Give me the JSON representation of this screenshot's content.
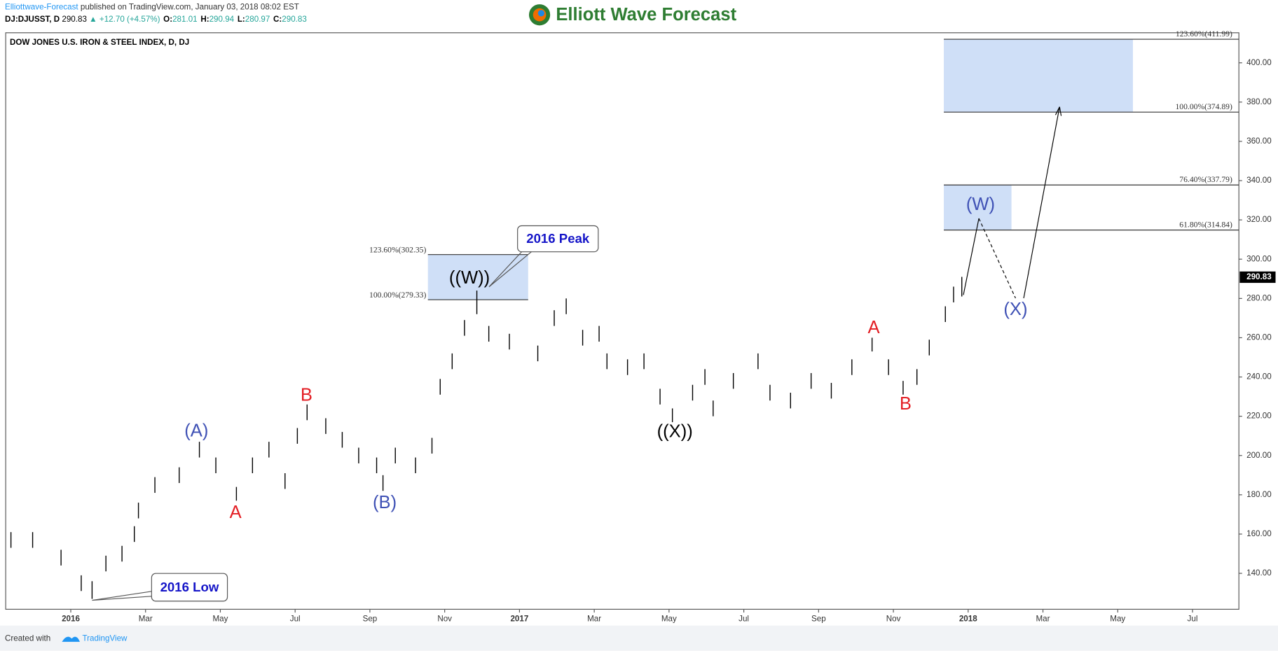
{
  "header": {
    "author": "Elliottwave-Forecast",
    "published": "published on TradingView.com, January 03, 2018 08:02 EST",
    "symbol": "DJ:DJUSST, D",
    "price": "290.83",
    "change": "▲ +12.70 (+4.57%)",
    "ohlc": [
      {
        "label": "O:",
        "value": "281.01"
      },
      {
        "label": "H:",
        "value": "290.94"
      },
      {
        "label": "L:",
        "value": "280.97"
      },
      {
        "label": "C:",
        "value": "290.83"
      }
    ],
    "logo": "Elliott Wave Forecast"
  },
  "footer": {
    "created": "Created with",
    "brand": "TradingView"
  },
  "chart_data": {
    "type": "ohlc",
    "title": "DOW JONES U.S. IRON & STEEL INDEX, D, DJ",
    "x": [
      -1.6,
      -1.02,
      -0.26,
      0.28,
      0.57,
      0.94,
      1.37,
      1.7,
      1.81,
      2.25,
      2.9,
      3.44,
      3.88,
      4.43,
      4.86,
      5.3,
      5.73,
      6.06,
      6.32,
      6.82,
      7.26,
      7.7,
      8.18,
      8.35,
      8.68,
      9.22,
      9.66,
      9.88,
      10.2,
      10.53,
      10.86,
      11.18,
      11.73,
      12.49,
      12.93,
      13.25,
      13.69,
      14.13,
      14.34,
      14.89,
      15.33,
      15.76,
      16.09,
      16.63,
      16.96,
      17.18,
      17.72,
      18.38,
      18.7,
      19.25,
      19.8,
      20.34,
      20.89,
      21.43,
      21.87,
      22.26,
      22.63,
      22.96,
      23.39,
      23.61,
      23.83
    ],
    "high": [
      161,
      161,
      152,
      139,
      136,
      149,
      154,
      164,
      176,
      189,
      194,
      207,
      199,
      184,
      199,
      207,
      191,
      214,
      226,
      219,
      212,
      204,
      199,
      190,
      204,
      199,
      209,
      239,
      252,
      269,
      284,
      266,
      262,
      256,
      274,
      280,
      264,
      266,
      252,
      249,
      252,
      234,
      224,
      236,
      244,
      228,
      242,
      252,
      236,
      232,
      242,
      237,
      249,
      260,
      249,
      238,
      244,
      259,
      276,
      286,
      291
    ],
    "low": [
      153,
      153,
      144,
      131,
      127,
      141,
      146,
      156,
      168,
      181,
      186,
      199,
      191,
      177,
      191,
      199,
      183,
      206,
      218,
      211,
      204,
      196,
      191,
      182,
      196,
      191,
      201,
      231,
      244,
      261,
      272,
      258,
      254,
      248,
      266,
      272,
      256,
      258,
      244,
      241,
      244,
      226,
      217,
      228,
      236,
      220,
      234,
      244,
      228,
      224,
      234,
      229,
      241,
      253,
      241,
      231,
      236,
      251,
      268,
      278,
      281
    ],
    "color": "#000000",
    "last_price": 290.83,
    "xlim": [
      -1.74,
      31.24
    ],
    "xticks": [
      {
        "value": 0,
        "label": "2016"
      },
      {
        "value": 2,
        "label": "Mar"
      },
      {
        "value": 4,
        "label": "May"
      },
      {
        "value": 6,
        "label": "Jul"
      },
      {
        "value": 8,
        "label": "Sep"
      },
      {
        "value": 10,
        "label": "Nov"
      },
      {
        "value": 12,
        "label": "2017"
      },
      {
        "value": 14,
        "label": "Mar"
      },
      {
        "value": 16,
        "label": "May"
      },
      {
        "value": 18,
        "label": "Jul"
      },
      {
        "value": 20,
        "label": "Sep"
      },
      {
        "value": 22,
        "label": "Nov"
      },
      {
        "value": 24,
        "label": "2018"
      },
      {
        "value": 26,
        "label": "Mar"
      },
      {
        "value": 28,
        "label": "May"
      },
      {
        "value": 30,
        "label": "Jul"
      }
    ],
    "ylim": [
      121.7,
      415.3
    ],
    "yticks": [
      {
        "value": 140,
        "label": "140.00"
      },
      {
        "value": 160,
        "label": "160.00"
      },
      {
        "value": 180,
        "label": "180.00"
      },
      {
        "value": 200,
        "label": "200.00"
      },
      {
        "value": 220,
        "label": "220.00"
      },
      {
        "value": 240,
        "label": "240.00"
      },
      {
        "value": 260,
        "label": "260.00"
      },
      {
        "value": 280,
        "label": "280.00"
      },
      {
        "value": 300,
        "label": "300.00"
      },
      {
        "value": 320,
        "label": "320.00"
      },
      {
        "value": 340,
        "label": "340.00"
      },
      {
        "value": 360,
        "label": "360.00"
      },
      {
        "value": 380,
        "label": "380.00"
      },
      {
        "value": 400,
        "label": "400.00"
      }
    ],
    "fib_levels": [
      {
        "value": 302.35,
        "label": "123.60%(302.35)"
      },
      {
        "value": 279.33,
        "label": "100.00%(279.33)"
      },
      {
        "value": 411.99,
        "label": "123.60%(411.99)"
      },
      {
        "value": 374.89,
        "label": "100.00%(374.89)"
      },
      {
        "value": 337.79,
        "label": "76.40%(337.79)"
      },
      {
        "value": 314.84,
        "label": "61.80%(314.84)"
      }
    ],
    "annotations": [
      {
        "text": "(A)",
        "color": "#3f51b5"
      },
      {
        "text": "A",
        "color": "#e31e24"
      },
      {
        "text": "B",
        "color": "#e31e24"
      },
      {
        "text": "(B)",
        "color": "#3f51b5"
      },
      {
        "text": "((W))",
        "color": "#000000"
      },
      {
        "text": "((X))",
        "color": "#000000"
      },
      {
        "text": "A",
        "color": "#e31e24"
      },
      {
        "text": "B",
        "color": "#e31e24"
      },
      {
        "text": "(W)",
        "color": "#3f51b5"
      },
      {
        "text": "(X)",
        "color": "#3f51b5"
      }
    ],
    "callouts": [
      "2016 Peak",
      "2016 Low"
    ]
  }
}
